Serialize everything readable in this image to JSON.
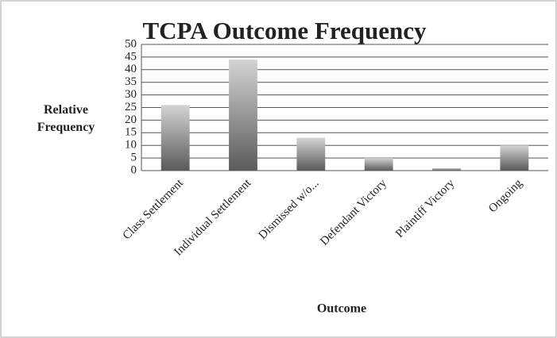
{
  "chart_data": {
    "type": "bar",
    "title": "TCPA Outcome Frequency",
    "x_label": "Outcome",
    "y_label": "Relative Frequency",
    "categories": [
      "Class Settlement",
      "Individual Settlement",
      "Dismissed w/o...",
      "Defendant Victory",
      "Plaintiff Victory",
      "Ongoing"
    ],
    "values": [
      26,
      44,
      13,
      5,
      1,
      10
    ],
    "color": "#8a8a8a",
    "ylim": [
      0,
      50
    ],
    "yticks": [
      0,
      5,
      10,
      15,
      20,
      25,
      30,
      35,
      40,
      45,
      50
    ],
    "grid": true
  }
}
